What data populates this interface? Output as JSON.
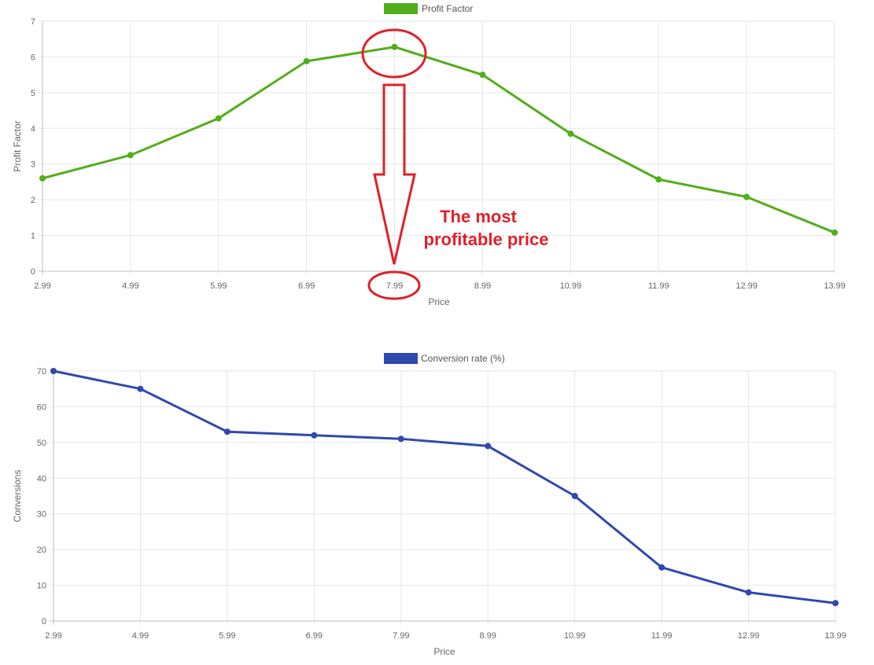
{
  "chart_data": [
    {
      "type": "line",
      "categories": [
        "2.99",
        "4.99",
        "5.99",
        "6.99",
        "7.99",
        "8.99",
        "10.99",
        "11.99",
        "12.99",
        "13.99"
      ],
      "series": [
        {
          "name": "Profit Factor",
          "values": [
            2.6,
            3.25,
            4.28,
            5.88,
            6.28,
            5.5,
            3.85,
            2.57,
            2.08,
            1.08
          ],
          "color": "#52ae1a"
        }
      ],
      "xlabel": "Price",
      "ylabel": "Profit Factor",
      "ylim": [
        0,
        7
      ],
      "yticks": [
        "0",
        "1",
        "2",
        "3",
        "4",
        "5",
        "6",
        "7"
      ],
      "grid": true,
      "legend_position": "top",
      "annotation": {
        "text_lines": [
          "The most",
          "profitable price"
        ],
        "highlighted_category": "7.99",
        "color": "#e0202a"
      }
    },
    {
      "type": "line",
      "categories": [
        "2.99",
        "4.99",
        "5.99",
        "6.99",
        "7.99",
        "8.99",
        "10.99",
        "11.99",
        "12.99",
        "13.99"
      ],
      "series": [
        {
          "name": "Conversion rate (%)",
          "values": [
            70,
            65,
            53,
            52,
            51,
            49,
            35,
            15,
            8,
            5
          ],
          "color": "#2f49ad"
        }
      ],
      "xlabel": "Price",
      "ylabel": "Conversions",
      "ylim": [
        0,
        70
      ],
      "yticks": [
        "0",
        "10",
        "20",
        "30",
        "40",
        "50",
        "60",
        "70"
      ],
      "grid": true,
      "legend_position": "top"
    }
  ]
}
